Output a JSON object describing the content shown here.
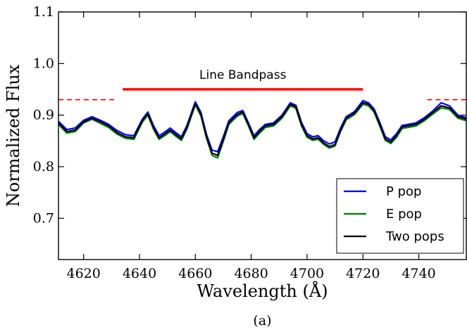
{
  "chart_data": {
    "type": "line",
    "xlabel": "Wavelength (Å)",
    "ylabel": "Normalized Flux",
    "xlim": [
      4611,
      4757
    ],
    "ylim": [
      0.62,
      1.1
    ],
    "xticks": [
      4620,
      4640,
      4660,
      4680,
      4700,
      4720,
      4740
    ],
    "yticks": [
      0.7,
      0.8,
      0.9,
      1.0,
      1.1
    ],
    "ytick_labels": [
      "0.7",
      "0.8",
      "0.9",
      "1.0",
      "1.1"
    ],
    "grid": false,
    "legend_position": "bottom-right",
    "caption": "(a)",
    "annotation": {
      "text": "Line Bandpass",
      "bandpass": {
        "x": [
          4634,
          4720
        ],
        "y": 0.95
      },
      "continuum_left": {
        "x": [
          4611,
          4631
        ],
        "y": 0.93
      },
      "continuum_right": {
        "x": [
          4743,
          4757
        ],
        "y": 0.93
      },
      "color": "#ff0000"
    },
    "x": [
      4611,
      4614,
      4617,
      4620,
      4623,
      4626,
      4629,
      4632,
      4635,
      4638,
      4641,
      4643,
      4645,
      4647,
      4649,
      4651,
      4653,
      4655,
      4657,
      4660,
      4662,
      4664,
      4666,
      4668,
      4670,
      4672,
      4675,
      4677,
      4679,
      4681,
      4683,
      4685,
      4688,
      4691,
      4694,
      4696,
      4698,
      4700,
      4702,
      4704,
      4706,
      4708,
      4710,
      4712,
      4714,
      4717,
      4720,
      4722,
      4724,
      4726,
      4728,
      4730,
      4732,
      4734,
      4736,
      4739,
      4742,
      4745,
      4748,
      4751,
      4754,
      4757
    ],
    "series": [
      {
        "name": "P pop",
        "color": "#0000ff",
        "values": [
          0.888,
          0.872,
          0.875,
          0.89,
          0.897,
          0.89,
          0.882,
          0.87,
          0.862,
          0.86,
          0.892,
          0.906,
          0.88,
          0.86,
          0.867,
          0.875,
          0.866,
          0.858,
          0.88,
          0.926,
          0.905,
          0.862,
          0.832,
          0.829,
          0.858,
          0.889,
          0.905,
          0.909,
          0.885,
          0.86,
          0.872,
          0.882,
          0.885,
          0.9,
          0.924,
          0.919,
          0.886,
          0.864,
          0.858,
          0.86,
          0.85,
          0.844,
          0.848,
          0.875,
          0.897,
          0.907,
          0.928,
          0.924,
          0.912,
          0.886,
          0.858,
          0.852,
          0.864,
          0.88,
          0.882,
          0.885,
          0.895,
          0.908,
          0.924,
          0.918,
          0.9,
          0.895
        ]
      },
      {
        "name": "E pop",
        "color": "#008000",
        "values": [
          0.882,
          0.865,
          0.868,
          0.885,
          0.892,
          0.884,
          0.876,
          0.863,
          0.855,
          0.853,
          0.886,
          0.9,
          0.873,
          0.853,
          0.86,
          0.868,
          0.859,
          0.851,
          0.873,
          0.92,
          0.898,
          0.855,
          0.822,
          0.817,
          0.849,
          0.882,
          0.898,
          0.903,
          0.879,
          0.853,
          0.865,
          0.876,
          0.879,
          0.894,
          0.918,
          0.913,
          0.879,
          0.857,
          0.851,
          0.853,
          0.843,
          0.836,
          0.84,
          0.868,
          0.891,
          0.901,
          0.921,
          0.918,
          0.906,
          0.879,
          0.851,
          0.845,
          0.857,
          0.874,
          0.876,
          0.879,
          0.889,
          0.902,
          0.914,
          0.911,
          0.894,
          0.889
        ]
      },
      {
        "name": "Two pops",
        "color": "#000000",
        "values": [
          0.885,
          0.868,
          0.871,
          0.887,
          0.894,
          0.887,
          0.879,
          0.866,
          0.858,
          0.856,
          0.889,
          0.903,
          0.876,
          0.856,
          0.863,
          0.871,
          0.862,
          0.854,
          0.876,
          0.923,
          0.901,
          0.858,
          0.826,
          0.822,
          0.853,
          0.885,
          0.901,
          0.906,
          0.882,
          0.856,
          0.868,
          0.879,
          0.882,
          0.897,
          0.921,
          0.916,
          0.882,
          0.86,
          0.854,
          0.856,
          0.846,
          0.839,
          0.843,
          0.871,
          0.894,
          0.904,
          0.924,
          0.921,
          0.909,
          0.882,
          0.854,
          0.848,
          0.86,
          0.877,
          0.879,
          0.882,
          0.892,
          0.905,
          0.918,
          0.914,
          0.897,
          0.892
        ]
      }
    ]
  }
}
